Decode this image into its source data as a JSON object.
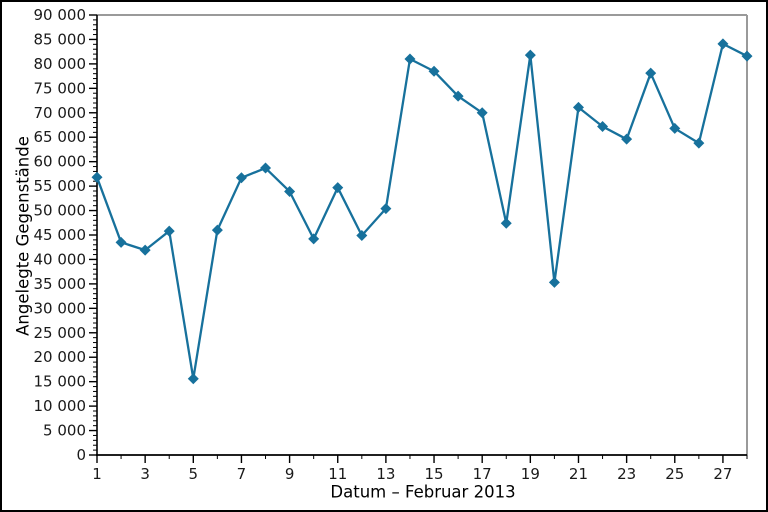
{
  "chart_data": {
    "type": "line",
    "title": "",
    "xlabel": "Datum – Februar 2013",
    "ylabel": "Angelegte Gegenstände",
    "x": [
      1,
      2,
      3,
      4,
      5,
      6,
      7,
      8,
      9,
      10,
      11,
      12,
      13,
      14,
      15,
      16,
      17,
      18,
      19,
      20,
      21,
      22,
      23,
      24,
      25,
      26,
      27,
      28
    ],
    "series": [
      {
        "name": "Angelegte Gegenstände",
        "values": [
          56800,
          43500,
          41900,
          45800,
          15600,
          46000,
          56700,
          58700,
          53900,
          44200,
          54700,
          44900,
          50400,
          81000,
          78500,
          73400,
          70000,
          47400,
          81800,
          35300,
          71100,
          67200,
          64600,
          78100,
          66800,
          63800,
          84100,
          81600
        ]
      }
    ],
    "xlim": [
      1,
      28
    ],
    "ylim": [
      0,
      90000
    ],
    "y_major_step": 5000,
    "y_minor_step": 1000,
    "x_major_ticks": [
      1,
      3,
      5,
      7,
      9,
      11,
      13,
      15,
      17,
      19,
      21,
      23,
      25,
      27
    ],
    "x_minor_ticks": [
      2,
      4,
      6,
      8,
      10,
      12,
      14,
      16,
      18,
      20,
      22,
      24,
      26,
      28
    ],
    "x_tick_labels": [
      "1",
      "3",
      "5",
      "7",
      "9",
      "11",
      "13",
      "15",
      "17",
      "19",
      "21",
      "23",
      "25",
      "27"
    ],
    "y_tick_labels": [
      "0",
      "5 000",
      "10 000",
      "15 000",
      "20 000",
      "25 000",
      "30 000",
      "35 000",
      "40 000",
      "45 000",
      "50 000",
      "55 000",
      "60 000",
      "65 000",
      "70 000",
      "75 000",
      "80 000",
      "85 000",
      "90 000"
    ],
    "grid": false,
    "legend": "none",
    "marker": "diamond",
    "colors": {
      "line": "#17719c",
      "marker": "#17719c",
      "axis": "#000000",
      "frame_top_right": "#9a9a9a",
      "tick_label": "#1a1a1a",
      "background": "#ffffff"
    }
  }
}
